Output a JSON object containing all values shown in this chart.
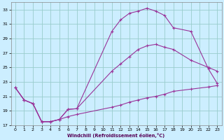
{
  "xlabel": "Windchill (Refroidissement éolien,°C)",
  "background_color": "#cceeff",
  "grid_color": "#99cccc",
  "line_color": "#993399",
  "xlim": [
    -0.5,
    23.5
  ],
  "ylim": [
    17,
    34
  ],
  "xticks": [
    0,
    1,
    2,
    3,
    4,
    5,
    6,
    7,
    8,
    9,
    10,
    11,
    12,
    13,
    14,
    15,
    16,
    17,
    18,
    19,
    20,
    21,
    22,
    23
  ],
  "yticks": [
    17,
    19,
    21,
    23,
    25,
    27,
    29,
    31,
    33
  ],
  "curve1_x": [
    0,
    1,
    2,
    3,
    4,
    5,
    6,
    7,
    11,
    12,
    13,
    14,
    15,
    16,
    17,
    18,
    20,
    22,
    23
  ],
  "curve1_y": [
    22.2,
    20.5,
    20.0,
    17.5,
    17.5,
    17.8,
    19.2,
    19.3,
    30.0,
    31.6,
    32.5,
    32.8,
    33.2,
    32.8,
    32.2,
    30.5,
    30.0,
    24.8,
    22.8
  ],
  "curve2_x": [
    0,
    1,
    2,
    3,
    4,
    5,
    6,
    7,
    11,
    12,
    13,
    14,
    15,
    16,
    17,
    18,
    20,
    22,
    23
  ],
  "curve2_y": [
    22.2,
    20.5,
    20.0,
    17.5,
    17.5,
    17.8,
    19.2,
    19.3,
    24.5,
    25.5,
    26.5,
    27.5,
    28.0,
    28.2,
    27.8,
    27.5,
    26.0,
    25.0,
    24.5
  ],
  "curve3_x": [
    0,
    1,
    2,
    3,
    4,
    5,
    6,
    7,
    11,
    12,
    13,
    14,
    15,
    16,
    17,
    18,
    20,
    22,
    23
  ],
  "curve3_y": [
    22.2,
    20.5,
    20.0,
    17.5,
    17.5,
    17.8,
    18.2,
    18.5,
    19.5,
    19.8,
    20.2,
    20.5,
    20.8,
    21.0,
    21.3,
    21.7,
    22.0,
    22.3,
    22.5
  ]
}
